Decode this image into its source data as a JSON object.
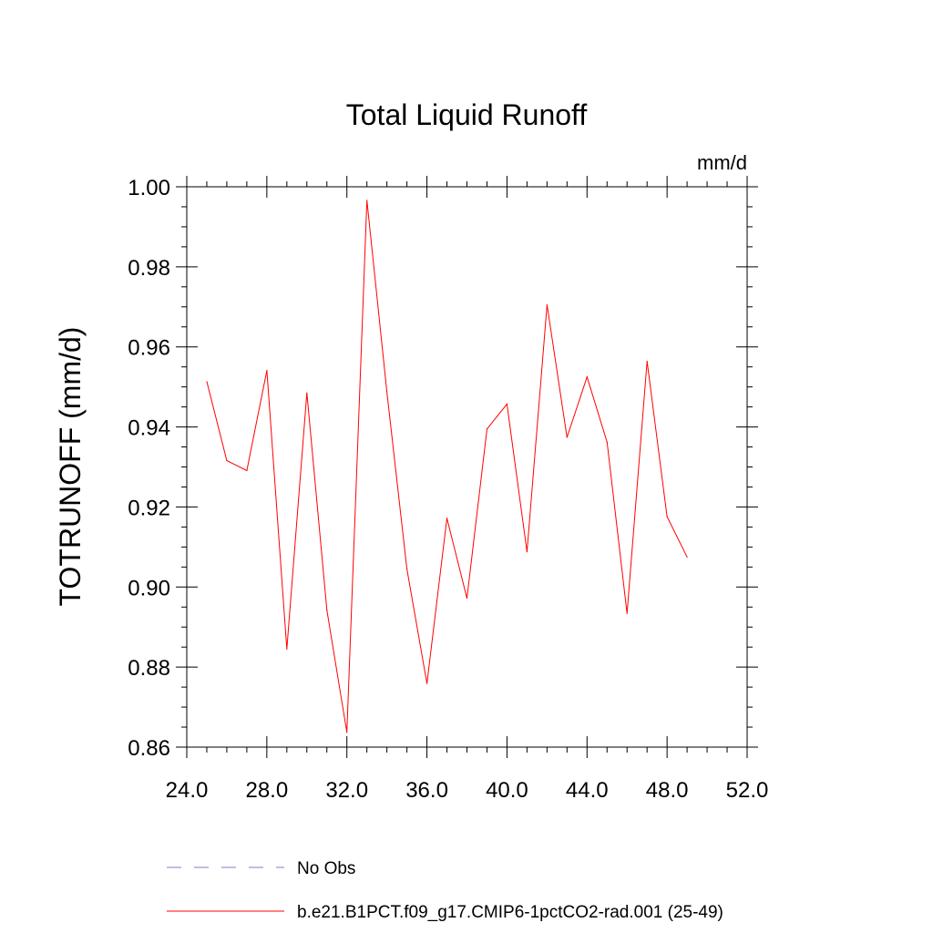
{
  "chart_data": {
    "type": "line",
    "title": "Total Liquid Runoff",
    "units_label": "mm/d",
    "ylabel": "TOTRUNOFF  (mm/d)",
    "xlabel": "",
    "xlim": [
      24,
      52
    ],
    "ylim": [
      0.86,
      1.0
    ],
    "x_ticks": [
      24,
      28,
      32,
      36,
      40,
      44,
      48,
      52
    ],
    "x_tick_labels": [
      "24.0",
      "28.0",
      "32.0",
      "36.0",
      "40.0",
      "44.0",
      "48.0",
      "52.0"
    ],
    "y_ticks": [
      0.86,
      0.88,
      0.9,
      0.92,
      0.94,
      0.96,
      0.98,
      1.0
    ],
    "y_tick_labels": [
      "0.86",
      "0.88",
      "0.90",
      "0.92",
      "0.94",
      "0.96",
      "0.98",
      "1.00"
    ],
    "grid": false,
    "legend_position": "bottom",
    "series": [
      {
        "name": "b.e21.B1PCT.f09_g17.CMIP6-1pctCO2-rad.001 (25-49)",
        "color": "#ff0000",
        "style": "solid",
        "x": [
          25,
          26,
          27,
          28,
          29,
          30,
          31,
          32,
          33,
          34,
          35,
          36,
          37,
          38,
          39,
          40,
          41,
          42,
          43,
          44,
          45,
          46,
          47,
          48,
          49
        ],
        "y": [
          0.9513,
          0.9316,
          0.9291,
          0.9541,
          0.8845,
          0.9485,
          0.8942,
          0.8637,
          0.9966,
          0.9488,
          0.9045,
          0.8759,
          0.9172,
          0.8972,
          0.9395,
          0.9457,
          0.9088,
          0.9705,
          0.9374,
          0.9525,
          0.9362,
          0.8934,
          0.9564,
          0.9176,
          0.9075
        ]
      }
    ],
    "legend": [
      {
        "label": "No Obs",
        "color": "#7b7bd4",
        "style": "dashed"
      },
      {
        "label": "b.e21.B1PCT.f09_g17.CMIP6-1pctCO2-rad.001 (25-49)",
        "color": "#ff0000",
        "style": "solid"
      }
    ]
  }
}
